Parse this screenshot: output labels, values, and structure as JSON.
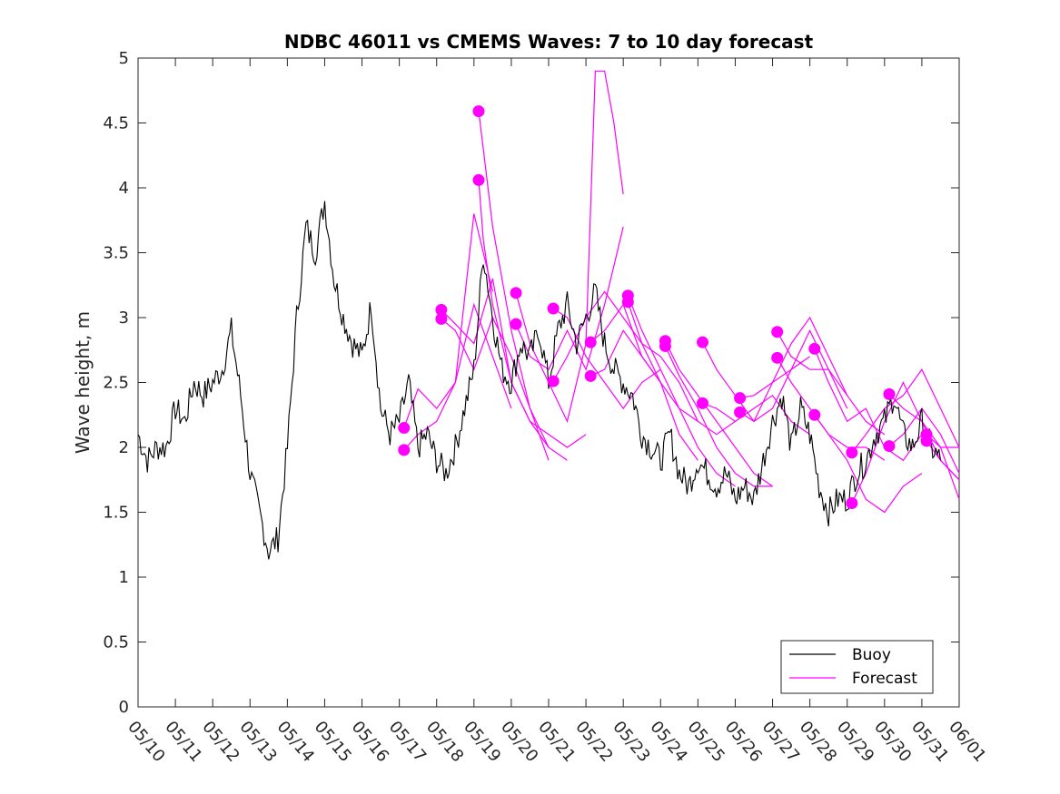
{
  "chart_data": {
    "type": "line",
    "title": "NDBC 46011 vs CMEMS Waves: 7 to 10 day forecast",
    "ylabel": "Wave height, m",
    "xlabel": "",
    "ylim": [
      0,
      5
    ],
    "xlim": [
      "05/10",
      "06/01"
    ],
    "grid": false,
    "legend_position": "bottom-right",
    "y_ticks": [
      0,
      0.5,
      1,
      1.5,
      2,
      2.5,
      3,
      3.5,
      4,
      4.5,
      5
    ],
    "y_tick_labels": [
      "0",
      "0.5",
      "1",
      "1.5",
      "2",
      "2.5",
      "3",
      "3.5",
      "4",
      "4.5",
      "5"
    ],
    "x_tick_labels": [
      "05/10",
      "05/11",
      "05/12",
      "05/13",
      "05/14",
      "05/15",
      "05/16",
      "05/17",
      "05/18",
      "05/19",
      "05/20",
      "05/21",
      "05/22",
      "05/23",
      "05/24",
      "05/25",
      "05/26",
      "05/27",
      "05/28",
      "05/29",
      "05/30",
      "05/31",
      "06/01"
    ],
    "colors": {
      "buoy": "#000000",
      "forecast": "#ff00ff"
    },
    "series": [
      {
        "name": "Buoy",
        "color": "#000000",
        "x": [
          "05/10",
          "05/10 06:00",
          "05/10 12:00",
          "05/10 18:00",
          "05/11",
          "05/11 06:00",
          "05/11 12:00",
          "05/11 18:00",
          "05/12",
          "05/12 06:00",
          "05/12 12:00",
          "05/12 18:00",
          "05/13",
          "05/13 06:00",
          "05/13 12:00",
          "05/13 18:00",
          "05/14",
          "05/14 06:00",
          "05/14 12:00",
          "05/14 18:00",
          "05/15",
          "05/15 06:00",
          "05/15 12:00",
          "05/15 18:00",
          "05/16",
          "05/16 06:00",
          "05/16 12:00",
          "05/16 18:00",
          "05/17",
          "05/17 06:00",
          "05/17 12:00",
          "05/17 18:00",
          "05/18",
          "05/18 06:00",
          "05/18 12:00",
          "05/18 18:00",
          "05/19",
          "05/19 06:00",
          "05/19 12:00",
          "05/19 18:00",
          "05/20",
          "05/20 06:00",
          "05/20 12:00",
          "05/20 18:00",
          "05/21",
          "05/21 06:00",
          "05/21 12:00",
          "05/21 18:00",
          "05/22",
          "05/22 06:00",
          "05/22 12:00",
          "05/22 18:00",
          "05/23",
          "05/23 06:00",
          "05/23 12:00",
          "05/23 18:00",
          "05/24",
          "05/24 06:00",
          "05/24 12:00",
          "05/24 18:00",
          "05/25",
          "05/25 06:00",
          "05/25 12:00",
          "05/25 18:00",
          "05/26",
          "05/26 06:00",
          "05/26 12:00",
          "05/26 18:00",
          "05/27",
          "05/27 06:00",
          "05/27 12:00",
          "05/27 18:00",
          "05/28",
          "05/28 06:00",
          "05/28 12:00",
          "05/28 18:00",
          "05/29",
          "05/29 06:00",
          "05/29 12:00",
          "05/29 18:00",
          "05/30",
          "05/30 06:00",
          "05/30 12:00",
          "05/30 18:00",
          "05/31",
          "05/31 06:00",
          "05/31 12:00"
        ],
        "y": [
          2.1,
          1.9,
          2.0,
          2.0,
          2.3,
          2.2,
          2.5,
          2.4,
          2.5,
          2.6,
          2.9,
          2.4,
          1.8,
          1.5,
          1.2,
          1.3,
          2.0,
          3.0,
          3.7,
          3.5,
          3.9,
          3.3,
          3.0,
          2.8,
          2.7,
          3.1,
          2.3,
          2.1,
          2.2,
          2.5,
          2.0,
          2.1,
          1.9,
          1.8,
          2.0,
          2.3,
          2.6,
          3.5,
          3.0,
          2.6,
          2.5,
          2.8,
          2.7,
          2.9,
          2.5,
          2.9,
          3.1,
          2.8,
          3.0,
          3.2,
          2.8,
          2.6,
          2.5,
          2.4,
          2.1,
          2.0,
          1.9,
          2.1,
          1.8,
          1.7,
          1.9,
          1.8,
          1.7,
          1.8,
          1.6,
          1.7,
          1.6,
          1.9,
          2.2,
          2.4,
          2.0,
          2.3,
          2.1,
          1.7,
          1.5,
          1.6,
          1.6,
          1.8,
          1.9,
          2.1,
          2.2,
          2.4,
          2.1,
          2.0,
          2.2,
          2.0,
          1.9
        ]
      },
      {
        "name": "Forecast",
        "color": "#ff00ff",
        "segments": [
          {
            "x": [
              "05/17 03:00",
              "05/17 12:00",
              "05/18",
              "05/18 12:00",
              "05/19",
              "05/19 12:00"
            ],
            "y": [
              2.15,
              2.45,
              2.3,
              2.5,
              3.8,
              3.2
            ]
          },
          {
            "x": [
              "05/17 03:00",
              "05/17 12:00",
              "05/18",
              "05/18 12:00",
              "05/19",
              "05/19 12:00",
              "05/20"
            ],
            "y": [
              1.98,
              2.1,
              2.2,
              2.5,
              3.1,
              2.7,
              2.3
            ]
          },
          {
            "x": [
              "05/18 03:00",
              "05/18 12:00",
              "05/19",
              "05/19 12:00",
              "05/20",
              "05/20 12:00",
              "05/21"
            ],
            "y": [
              3.06,
              2.95,
              2.8,
              3.3,
              2.5,
              2.2,
              2.0
            ]
          },
          {
            "x": [
              "05/18 03:00",
              "05/18 12:00",
              "05/19",
              "05/19 12:00",
              "05/20",
              "05/20 12:00",
              "05/21"
            ],
            "y": [
              2.99,
              2.9,
              2.6,
              3.0,
              2.7,
              2.3,
              1.9
            ]
          },
          {
            "x": [
              "05/19 03:00",
              "05/19 06:00",
              "05/19 12:00",
              "05/20",
              "05/20 12:00",
              "05/21",
              "05/21 12:00"
            ],
            "y": [
              4.59,
              4.3,
              3.7,
              2.9,
              2.3,
              2.0,
              1.9
            ]
          },
          {
            "x": [
              "05/19 03:00",
              "05/19 06:00",
              "05/19 12:00",
              "05/20",
              "05/20 12:00",
              "05/21",
              "05/21 12:00",
              "05/22"
            ],
            "y": [
              4.06,
              3.6,
              3.1,
              2.5,
              2.2,
              2.1,
              2.0,
              2.1
            ]
          },
          {
            "x": [
              "05/20 03:00",
              "05/20 12:00",
              "05/21",
              "05/21 12:00",
              "05/22",
              "05/22 06:00",
              "05/22 12:00",
              "05/22 18:00",
              "05/23"
            ],
            "y": [
              3.19,
              2.8,
              2.5,
              2.2,
              2.8,
              4.9,
              4.9,
              4.5,
              3.95
            ]
          },
          {
            "x": [
              "05/20 03:00",
              "05/20 12:00",
              "05/21",
              "05/21 12:00",
              "05/22",
              "05/22 12:00",
              "05/23"
            ],
            "y": [
              2.95,
              2.7,
              2.6,
              2.9,
              2.6,
              3.1,
              3.7
            ]
          },
          {
            "x": [
              "05/21 03:00",
              "05/21 12:00",
              "05/22",
              "05/22 12:00",
              "05/23",
              "05/23 12:00",
              "05/24"
            ],
            "y": [
              3.07,
              3.0,
              2.7,
              2.5,
              2.3,
              2.5,
              2.6
            ]
          },
          {
            "x": [
              "05/21 03:00",
              "05/21 12:00",
              "05/22",
              "05/22 12:00",
              "05/23",
              "05/23 12:00",
              "05/24"
            ],
            "y": [
              2.51,
              2.7,
              3.0,
              3.2,
              3.0,
              2.8,
              2.5
            ]
          },
          {
            "x": [
              "05/22 03:00",
              "05/22 12:00",
              "05/23",
              "05/23 12:00",
              "05/24",
              "05/24 12:00",
              "05/25"
            ],
            "y": [
              2.81,
              2.9,
              3.1,
              2.7,
              2.5,
              2.3,
              2.2
            ]
          },
          {
            "x": [
              "05/22 03:00",
              "05/22 12:00",
              "05/23",
              "05/23 12:00",
              "05/24",
              "05/24 12:00",
              "05/25"
            ],
            "y": [
              2.55,
              2.6,
              2.9,
              2.7,
              2.5,
              2.1,
              1.9
            ]
          },
          {
            "x": [
              "05/23 03:00",
              "05/23 12:00",
              "05/24",
              "05/24 12:00",
              "05/25",
              "05/25 12:00",
              "05/26"
            ],
            "y": [
              3.17,
              2.9,
              2.6,
              2.3,
              2.0,
              1.8,
              1.7
            ]
          },
          {
            "x": [
              "05/23 03:00",
              "05/23 12:00",
              "05/24",
              "05/24 12:00",
              "05/25",
              "05/25 12:00",
              "05/26"
            ],
            "y": [
              3.12,
              2.8,
              2.7,
              2.5,
              2.2,
              2.1,
              2.2
            ]
          },
          {
            "x": [
              "05/24 03:00",
              "05/24 12:00",
              "05/25",
              "05/25 12:00",
              "05/26",
              "05/26 12:00",
              "05/27"
            ],
            "y": [
              2.82,
              2.6,
              2.4,
              2.2,
              2.0,
              1.8,
              1.7
            ]
          },
          {
            "x": [
              "05/24 03:00",
              "05/24 12:00",
              "05/25",
              "05/25 12:00",
              "05/26",
              "05/26 12:00",
              "05/27"
            ],
            "y": [
              2.78,
              2.55,
              2.3,
              2.0,
              1.8,
              1.7,
              1.7
            ]
          },
          {
            "x": [
              "05/25 03:00",
              "05/25 12:00",
              "05/26",
              "05/26 12:00",
              "05/27",
              "05/27 12:00",
              "05/28"
            ],
            "y": [
              2.81,
              2.6,
              2.4,
              2.2,
              2.3,
              2.6,
              2.7
            ]
          },
          {
            "x": [
              "05/25 03:00",
              "05/25 12:00",
              "05/26",
              "05/26 12:00",
              "05/27",
              "05/27 12:00",
              "05/28"
            ],
            "y": [
              2.34,
              2.3,
              2.2,
              2.3,
              2.4,
              2.2,
              2.1
            ]
          },
          {
            "x": [
              "05/26 03:00",
              "05/26 12:00",
              "05/27",
              "05/27 12:00",
              "05/28",
              "05/28 12:00",
              "05/29"
            ],
            "y": [
              2.38,
              2.4,
              2.5,
              2.6,
              2.9,
              2.6,
              2.3
            ]
          },
          {
            "x": [
              "05/26 03:00",
              "05/26 12:00",
              "05/27",
              "05/27 12:00",
              "05/28",
              "05/28 12:00",
              "05/29"
            ],
            "y": [
              2.27,
              2.2,
              2.5,
              2.8,
              3.0,
              2.7,
              2.4
            ]
          },
          {
            "x": [
              "05/27 03:00",
              "05/27 12:00",
              "05/28",
              "05/28 12:00",
              "05/29",
              "05/29 12:00",
              "05/30"
            ],
            "y": [
              2.89,
              2.7,
              2.6,
              2.6,
              2.4,
              2.2,
              2.1
            ]
          },
          {
            "x": [
              "05/27 03:00",
              "05/27 12:00",
              "05/28",
              "05/28 12:00",
              "05/29",
              "05/29 12:00",
              "05/30"
            ],
            "y": [
              2.69,
              2.5,
              2.3,
              2.1,
              2.0,
              2.0,
              1.9
            ]
          },
          {
            "x": [
              "05/28 03:00",
              "05/28 12:00",
              "05/29",
              "05/29 12:00",
              "05/30",
              "05/30 12:00",
              "05/31"
            ],
            "y": [
              2.76,
              2.5,
              2.2,
              2.3,
              2.0,
              1.9,
              2.1
            ]
          },
          {
            "x": [
              "05/28 03:00",
              "05/28 12:00",
              "05/29",
              "05/29 12:00",
              "05/30",
              "05/30 12:00",
              "05/31"
            ],
            "y": [
              2.25,
              2.1,
              1.9,
              1.6,
              1.5,
              1.7,
              1.8
            ]
          },
          {
            "x": [
              "05/29 03:00",
              "05/29 12:00",
              "05/30",
              "05/30 12:00",
              "05/31",
              "05/31 12:00",
              "06/01"
            ],
            "y": [
              1.96,
              2.1,
              2.3,
              2.4,
              2.6,
              2.3,
              2.0
            ]
          },
          {
            "x": [
              "05/29 03:00",
              "05/29 12:00",
              "05/30",
              "05/30 12:00",
              "05/31",
              "05/31 12:00",
              "06/01"
            ],
            "y": [
              1.57,
              1.8,
              2.2,
              2.5,
              2.2,
              1.9,
              1.75
            ]
          },
          {
            "x": [
              "05/30 03:00",
              "05/30 12:00",
              "05/31",
              "05/31 12:00",
              "06/01"
            ],
            "y": [
              2.41,
              2.3,
              2.2,
              2.0,
              1.6
            ]
          },
          {
            "x": [
              "05/30 03:00",
              "05/30 12:00",
              "05/31",
              "05/31 12:00",
              "06/01"
            ],
            "y": [
              2.01,
              2.1,
              2.3,
              2.1,
              1.8
            ]
          },
          {
            "x": [
              "05/31 03:00",
              "05/31 12:00",
              "06/01"
            ],
            "y": [
              2.1,
              2.0,
              2.0
            ]
          },
          {
            "x": [
              "05/31 03:00",
              "05/31 12:00",
              "06/01"
            ],
            "y": [
              2.05,
              1.9,
              1.75
            ]
          }
        ]
      }
    ],
    "legend": [
      {
        "label": "Buoy",
        "color": "#000000"
      },
      {
        "label": "Forecast",
        "color": "#ff00ff"
      }
    ]
  }
}
